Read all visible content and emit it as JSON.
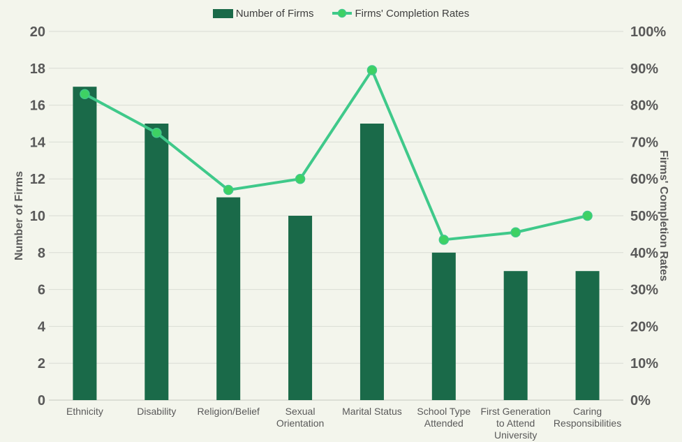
{
  "chart_data": {
    "type": "bar",
    "subtype": "bar-and-line-dual-axis",
    "categories": [
      "Ethnicity",
      "Disability",
      "Religion/Belief",
      "Sexual Orientation",
      "Marital Status",
      "School Type Attended",
      "First Generation to Attend University",
      "Caring Responsibilities"
    ],
    "category_label_lines": [
      [
        "Ethnicity"
      ],
      [
        "Disability"
      ],
      [
        "Religion/Belief"
      ],
      [
        "Sexual",
        "Orientation"
      ],
      [
        "Marital Status"
      ],
      [
        "School Type",
        "Attended"
      ],
      [
        "First Generation",
        "to Attend",
        "University"
      ],
      [
        "Caring",
        "Responsibilities"
      ]
    ],
    "series": [
      {
        "name": "Number of Firms",
        "type": "bar",
        "axis": "left",
        "values": [
          17,
          15,
          11,
          10,
          15,
          8,
          7,
          7
        ],
        "color": "#1a6a49"
      },
      {
        "name": "Firms' Completion Rates",
        "type": "line",
        "axis": "right",
        "values": [
          83,
          72.5,
          57,
          60,
          89.5,
          43.5,
          45.5,
          50
        ],
        "unit": "%",
        "color": "#3fc98a",
        "marker_color": "#3ed163"
      }
    ],
    "left_axis": {
      "label": "Number of Firms",
      "min": 0,
      "max": 20,
      "step": 2,
      "ticks": [
        "0",
        "2",
        "4",
        "6",
        "8",
        "10",
        "12",
        "14",
        "16",
        "18",
        "20"
      ]
    },
    "right_axis": {
      "label": "Firms' Completion Rates",
      "min": 0,
      "max": 100,
      "step": 10,
      "suffix": "%",
      "ticks": [
        "0%",
        "10%",
        "20%",
        "30%",
        "40%",
        "50%",
        "60%",
        "70%",
        "80%",
        "90%",
        "100%"
      ]
    },
    "title": "",
    "grid": true,
    "legend_position": "top",
    "style": {
      "background": "#f3f5ec",
      "gridline_color": "#dadcd4",
      "axis_line_color": "#c6c9c0",
      "tick_text_color": "#595959",
      "category_text_color": "#595959",
      "legend_text_color": "#3f3f3f"
    }
  }
}
